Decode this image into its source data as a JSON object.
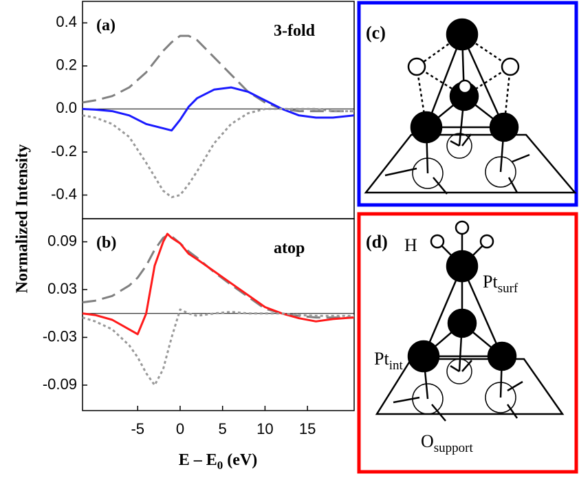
{
  "chart_data": [
    {
      "type": "line",
      "panel_label": "(a)",
      "annotation": "3-fold",
      "y_label": "Normalized Intensity",
      "x": [
        -11.5,
        -10,
        -8,
        -6,
        -4,
        -2,
        -1,
        0,
        1,
        2,
        4,
        6,
        8,
        10,
        12,
        14,
        16,
        18,
        20.5
      ],
      "xlim": [
        -11.5,
        20.5
      ],
      "ylim": [
        -0.51,
        0.5
      ],
      "yticks": [
        0.4,
        0.2,
        {
          "value": 0,
          "label": "0.0"
        },
        -0.2,
        -0.4
      ],
      "hline": 0,
      "series": [
        {
          "color": "#808080",
          "style": "dashed",
          "values": [
            0.03,
            0.04,
            0.06,
            0.1,
            0.17,
            0.27,
            0.31,
            0.34,
            0.34,
            0.32,
            0.24,
            0.16,
            0.08,
            0.03,
            0.0,
            -0.01,
            -0.01,
            -0.01,
            -0.01
          ]
        },
        {
          "color": "#1a1aff",
          "style": "solid",
          "values": [
            0,
            -0.003,
            -0.01,
            -0.03,
            -0.07,
            -0.09,
            -0.1,
            -0.05,
            0.01,
            0.05,
            0.09,
            0.1,
            0.08,
            0.04,
            0.0,
            -0.03,
            -0.04,
            -0.04,
            -0.03
          ]
        },
        {
          "color": "#999999",
          "style": "dotted",
          "values": [
            -0.03,
            -0.04,
            -0.07,
            -0.13,
            -0.25,
            -0.38,
            -0.41,
            -0.4,
            -0.35,
            -0.29,
            -0.16,
            -0.07,
            -0.02,
            0.0,
            0.0,
            0.0,
            0.0,
            -0.01,
            -0.01
          ]
        }
      ]
    },
    {
      "type": "line",
      "panel_label": "(b)",
      "annotation": "atop",
      "x_label": {
        "text": "E – E",
        "sub": "0",
        "tail": " (eV)"
      },
      "x": [
        -11.5,
        -10,
        -8,
        -6,
        -5,
        -4,
        -3,
        -2,
        -1.5,
        -1,
        0,
        1,
        2,
        4,
        6,
        8,
        10,
        12,
        14,
        16,
        18,
        20.5
      ],
      "xlim": [
        -11.5,
        20.5
      ],
      "ylim": [
        -0.122,
        0.119
      ],
      "xticks": [
        -5,
        0,
        5,
        10,
        15
      ],
      "yticks": [
        0.09,
        0.03,
        -0.03,
        -0.09
      ],
      "hline": 0,
      "series": [
        {
          "color": "#808080",
          "style": "dashed",
          "values": [
            0.014,
            0.016,
            0.022,
            0.035,
            0.045,
            0.06,
            0.08,
            0.095,
            0.098,
            0.097,
            0.088,
            0.078,
            0.07,
            0.052,
            0.036,
            0.021,
            0.006,
            0.0,
            -0.003,
            -0.005,
            -0.005,
            -0.005
          ]
        },
        {
          "color": "#ff1a1a",
          "style": "solid",
          "values": [
            0,
            -0.002,
            -0.008,
            -0.02,
            -0.026,
            0,
            0.06,
            0.09,
            0.1,
            0.095,
            0.088,
            0.075,
            0.068,
            0.053,
            0.038,
            0.023,
            0.008,
            0.0,
            -0.006,
            -0.01,
            -0.007,
            -0.005
          ]
        },
        {
          "color": "#999999",
          "style": "dotted",
          "values": [
            -0.005,
            -0.01,
            -0.02,
            -0.04,
            -0.055,
            -0.075,
            -0.09,
            -0.07,
            -0.05,
            -0.03,
            0.005,
            0.0,
            -0.003,
            0.0,
            0.002,
            0.0,
            0.0,
            0.0,
            -0.002,
            -0.003,
            -0.003,
            -0.003
          ]
        }
      ]
    }
  ],
  "diagrams": {
    "c": {
      "label": "(c)"
    },
    "d": {
      "label": "(d)",
      "h": "H",
      "pt_surf": {
        "text": "Pt",
        "sub": "surf"
      },
      "pt_int": {
        "text": "Pt",
        "sub": "int"
      },
      "o_support": {
        "text": "O",
        "sub": "support"
      }
    }
  }
}
